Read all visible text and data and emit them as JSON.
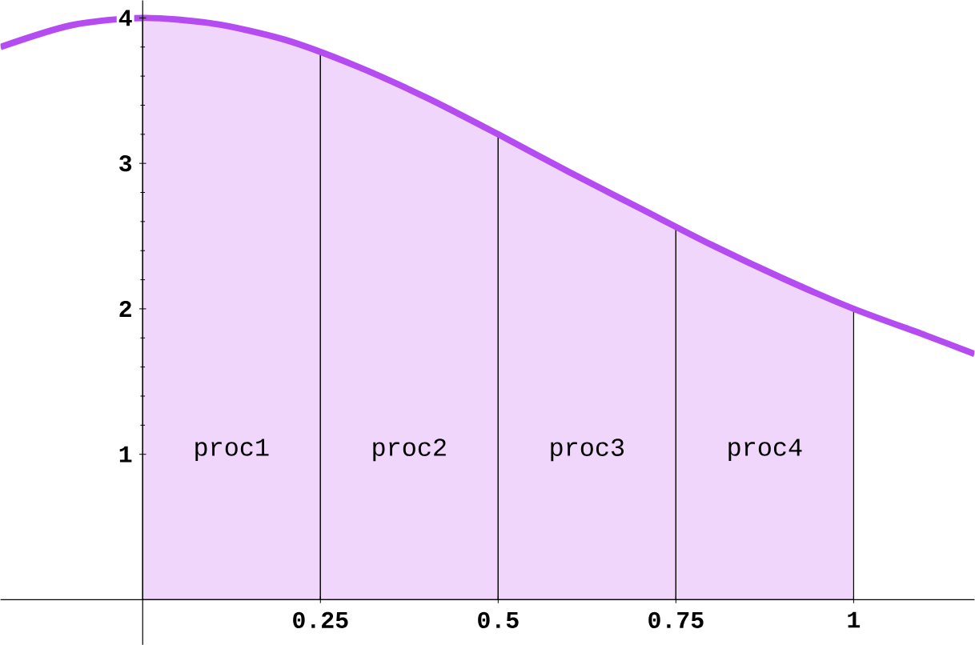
{
  "chart_data": {
    "type": "area",
    "series": [
      {
        "name": "proc1",
        "color": "#f0d6fb",
        "x": [
          0,
          0.1,
          0.2,
          0.25
        ],
        "values": [
          4,
          3.96,
          3.85,
          3.76
        ]
      },
      {
        "name": "proc2",
        "color": "#f0d6fb",
        "x": [
          0.25,
          0.3,
          0.4,
          0.5
        ],
        "values": [
          3.76,
          3.67,
          3.45,
          3.2
        ]
      },
      {
        "name": "proc3",
        "color": "#f0d6fb",
        "x": [
          0.5,
          0.6,
          0.7,
          0.75
        ],
        "values": [
          3.2,
          2.94,
          2.69,
          2.56
        ]
      },
      {
        "name": "proc4",
        "color": "#f0d6fb",
        "x": [
          0.75,
          0.8,
          0.9,
          1
        ],
        "values": [
          2.56,
          2.44,
          2.21,
          2
        ]
      },
      {
        "type": "line",
        "color": "#b54cf2",
        "x": [
          -0.2,
          -0.1,
          0,
          0.1,
          0.2,
          0.3,
          0.4,
          0.5,
          0.6,
          0.7,
          0.8,
          0.9,
          1,
          1.1,
          1.17
        ],
        "values": [
          3.8,
          3.95,
          4,
          3.96,
          3.85,
          3.67,
          3.45,
          3.2,
          2.94,
          2.69,
          2.44,
          2.21,
          2,
          1.82,
          1.69
        ]
      }
    ],
    "xlim": [
      -0.2,
      1.17
    ],
    "ylim": [
      -0.31,
      4.12
    ],
    "xticks": [
      0.25,
      0.5,
      0.75,
      1
    ],
    "yticks": [
      1,
      2,
      3,
      4
    ],
    "grid": false,
    "marker": "none"
  }
}
